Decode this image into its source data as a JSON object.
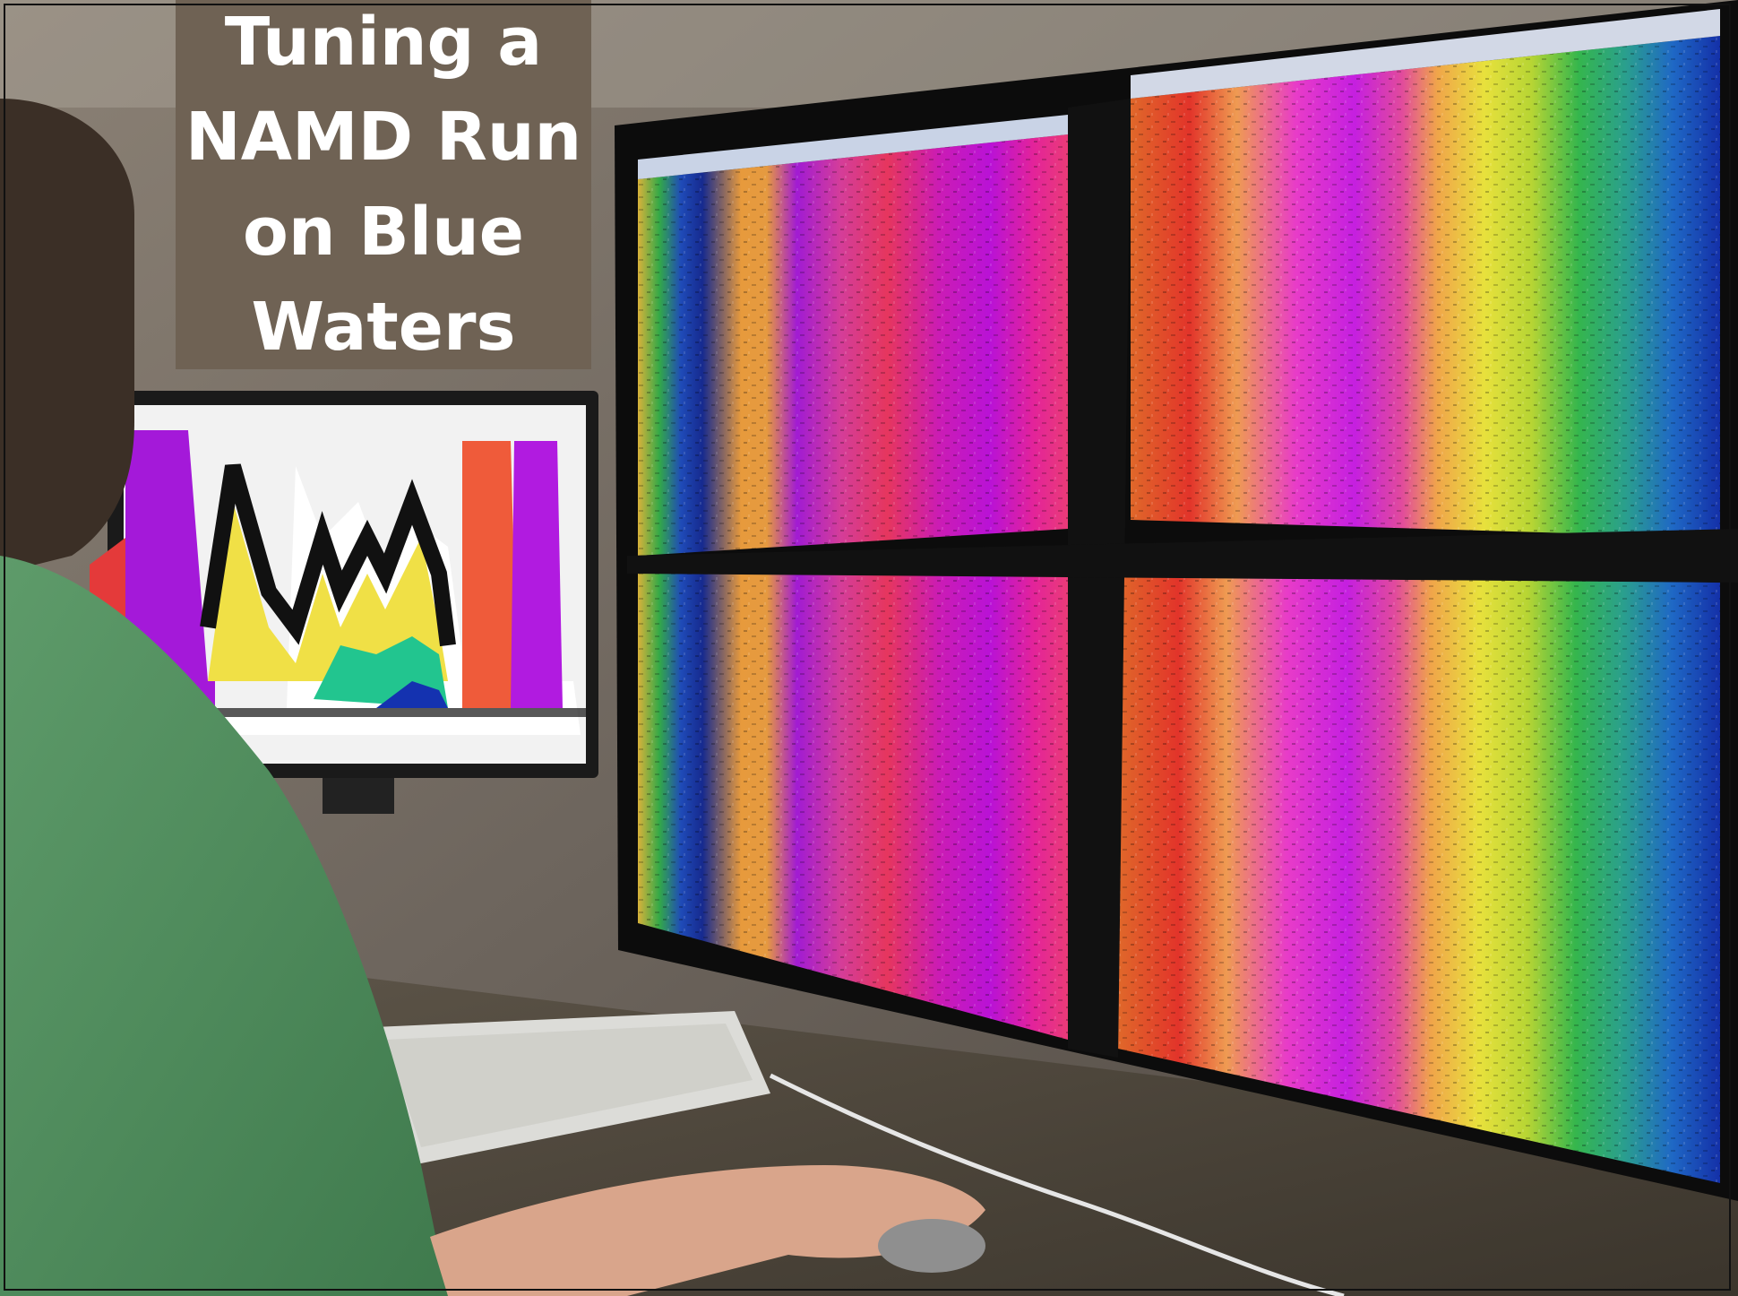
{
  "title": {
    "lines": [
      "Tuning a",
      "NAMD Run",
      "on Blue",
      "Waters"
    ]
  },
  "scene": {
    "description_icons": [
      "person",
      "monitor",
      "keyboard",
      "mouse"
    ],
    "colors": {
      "frame": "#111111",
      "title_bg": "#6f6254",
      "title_text": "#ffffff",
      "shirt": "#4f8a5d"
    }
  }
}
